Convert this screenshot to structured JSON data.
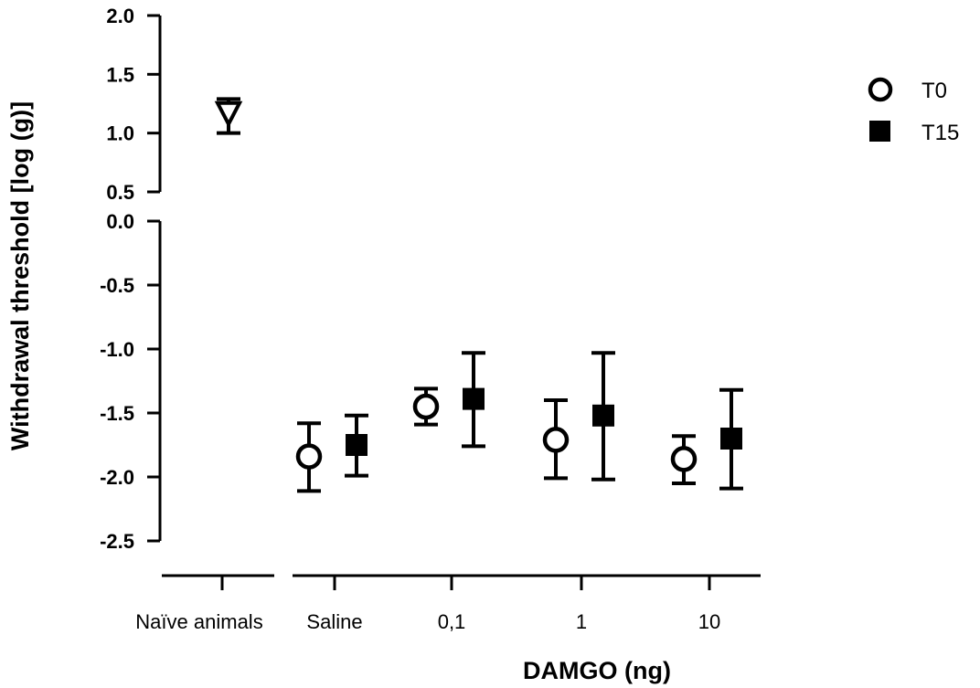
{
  "chart_data": {
    "type": "scatter",
    "ylabel": "Withdrawal threshold [log (g)]",
    "xlabel": "DAMGO (ng)",
    "y_upper_segment": {
      "ylim": [
        0.5,
        2.0
      ],
      "ticks": [
        "2.0",
        "1.5",
        "1.0",
        "0.5"
      ]
    },
    "y_lower_segment": {
      "ylim": [
        -2.5,
        0.0
      ],
      "ticks": [
        "0.0",
        "-0.5",
        "-1.0",
        "-1.5",
        "-2.0",
        "-2.5"
      ]
    },
    "categories": [
      "Naïve animals",
      "Saline",
      "0,1",
      "1",
      "10"
    ],
    "naive": {
      "category": "Naïve animals",
      "value": 1.17,
      "err_low": 1.0,
      "err_high": 1.29
    },
    "series": [
      {
        "name": "T0",
        "marker": "open-circle",
        "points": [
          {
            "category": "Saline",
            "value": -1.84,
            "err_low": -2.11,
            "err_high": -1.58
          },
          {
            "category": "0,1",
            "value": -1.45,
            "err_low": -1.59,
            "err_high": -1.31
          },
          {
            "category": "1",
            "value": -1.71,
            "err_low": -2.01,
            "err_high": -1.4
          },
          {
            "category": "10",
            "value": -1.86,
            "err_low": -2.05,
            "err_high": -1.68
          }
        ]
      },
      {
        "name": "T15",
        "marker": "filled-square",
        "points": [
          {
            "category": "Saline",
            "value": -1.75,
            "err_low": -1.99,
            "err_high": -1.52
          },
          {
            "category": "0,1",
            "value": -1.39,
            "err_low": -1.76,
            "err_high": -1.03
          },
          {
            "category": "1",
            "value": -1.52,
            "err_low": -2.02,
            "err_high": -1.03
          },
          {
            "category": "10",
            "value": -1.7,
            "err_low": -2.09,
            "err_high": -1.32
          }
        ]
      }
    ],
    "legend": {
      "placement": "top-right"
    },
    "grid": false,
    "colors": {
      "line": "#000000",
      "background": "#ffffff"
    }
  }
}
